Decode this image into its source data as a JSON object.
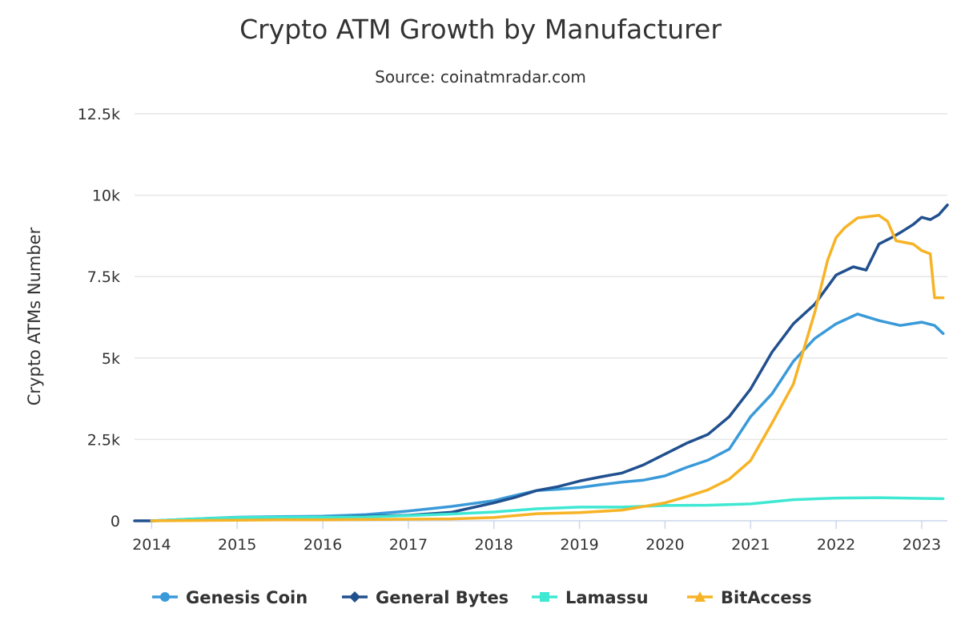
{
  "title": "Crypto ATM Growth by Manufacturer",
  "subtitle": "Source: coinatmradar.com",
  "chart_data": {
    "type": "line",
    "title": "Crypto ATM Growth by Manufacturer",
    "subtitle": "Source: coinatmradar.com",
    "xlabel": "",
    "ylabel": "Crypto ATMs Number",
    "xlim": [
      2013.8,
      2023.3
    ],
    "ylim": [
      0,
      12500
    ],
    "x_ticks": [
      2014,
      2015,
      2016,
      2017,
      2018,
      2019,
      2020,
      2021,
      2022,
      2023
    ],
    "x_tick_labels": [
      "2014",
      "2015",
      "2016",
      "2017",
      "2018",
      "2019",
      "2020",
      "2021",
      "2022",
      "2023"
    ],
    "y_ticks": [
      0,
      2500,
      5000,
      7500,
      10000,
      12500
    ],
    "y_tick_labels": [
      "0",
      "2.5k",
      "5k",
      "7.5k",
      "10k",
      "12.5k"
    ],
    "grid": true,
    "legend_position": "bottom-center",
    "series": [
      {
        "name": "Genesis Coin",
        "color": "#3a9ad9",
        "marker": "circle",
        "x": [
          2014.0,
          2014.5,
          2015.0,
          2015.5,
          2016.0,
          2016.5,
          2017.0,
          2017.5,
          2018.0,
          2018.25,
          2018.5,
          2018.75,
          2019.0,
          2019.25,
          2019.5,
          2019.75,
          2020.0,
          2020.25,
          2020.5,
          2020.75,
          2021.0,
          2021.25,
          2021.5,
          2021.75,
          2022.0,
          2022.25,
          2022.5,
          2022.75,
          2023.0,
          2023.15,
          2023.25
        ],
        "y": [
          0,
          60,
          110,
          130,
          140,
          190,
          300,
          440,
          620,
          780,
          930,
          970,
          1020,
          1110,
          1190,
          1250,
          1380,
          1640,
          1860,
          2200,
          3200,
          3900,
          4900,
          5600,
          6050,
          6350,
          6150,
          6000,
          6100,
          6000,
          5750
        ]
      },
      {
        "name": "General Bytes",
        "color": "#21508f",
        "marker": "diamond",
        "x": [
          2013.8,
          2014.0,
          2014.5,
          2015.0,
          2015.5,
          2016.0,
          2016.5,
          2017.0,
          2017.5,
          2018.0,
          2018.25,
          2018.5,
          2018.75,
          2019.0,
          2019.25,
          2019.5,
          2019.75,
          2020.0,
          2020.25,
          2020.5,
          2020.75,
          2021.0,
          2021.25,
          2021.5,
          2021.75,
          2022.0,
          2022.2,
          2022.35,
          2022.5,
          2022.65,
          2022.75,
          2022.9,
          2023.0,
          2023.1,
          2023.2,
          2023.3
        ],
        "y": [
          0,
          0,
          30,
          60,
          80,
          110,
          140,
          170,
          260,
          550,
          720,
          930,
          1050,
          1220,
          1350,
          1470,
          1720,
          2050,
          2380,
          2650,
          3200,
          4050,
          5180,
          6050,
          6650,
          7550,
          7800,
          7700,
          8500,
          8700,
          8850,
          9100,
          9320,
          9250,
          9400,
          9700
        ]
      },
      {
        "name": "Lamassu",
        "color": "#3ee8d2",
        "marker": "square",
        "x": [
          2014.0,
          2014.5,
          2015.0,
          2015.5,
          2016.0,
          2016.5,
          2017.0,
          2017.5,
          2018.0,
          2018.5,
          2019.0,
          2019.5,
          2020.0,
          2020.5,
          2021.0,
          2021.5,
          2022.0,
          2022.5,
          2023.0,
          2023.25
        ],
        "y": [
          0,
          60,
          100,
          110,
          110,
          120,
          160,
          210,
          270,
          370,
          420,
          420,
          470,
          480,
          520,
          650,
          700,
          710,
          690,
          680
        ]
      },
      {
        "name": "BitAccess",
        "color": "#f7b326",
        "marker": "triangle",
        "x": [
          2014.0,
          2014.5,
          2015.0,
          2015.5,
          2016.0,
          2016.5,
          2017.0,
          2017.5,
          2018.0,
          2018.5,
          2019.0,
          2019.5,
          2020.0,
          2020.25,
          2020.5,
          2020.75,
          2021.0,
          2021.25,
          2021.5,
          2021.75,
          2021.9,
          2022.0,
          2022.1,
          2022.25,
          2022.4,
          2022.5,
          2022.6,
          2022.7,
          2022.9,
          2023.0,
          2023.1,
          2023.15,
          2023.25
        ],
        "y": [
          0,
          10,
          20,
          30,
          30,
          40,
          50,
          60,
          100,
          220,
          250,
          330,
          550,
          740,
          950,
          1280,
          1850,
          3000,
          4200,
          6400,
          8000,
          8700,
          9000,
          9300,
          9350,
          9380,
          9200,
          8600,
          8500,
          8300,
          8200,
          6850,
          6850
        ]
      }
    ]
  }
}
